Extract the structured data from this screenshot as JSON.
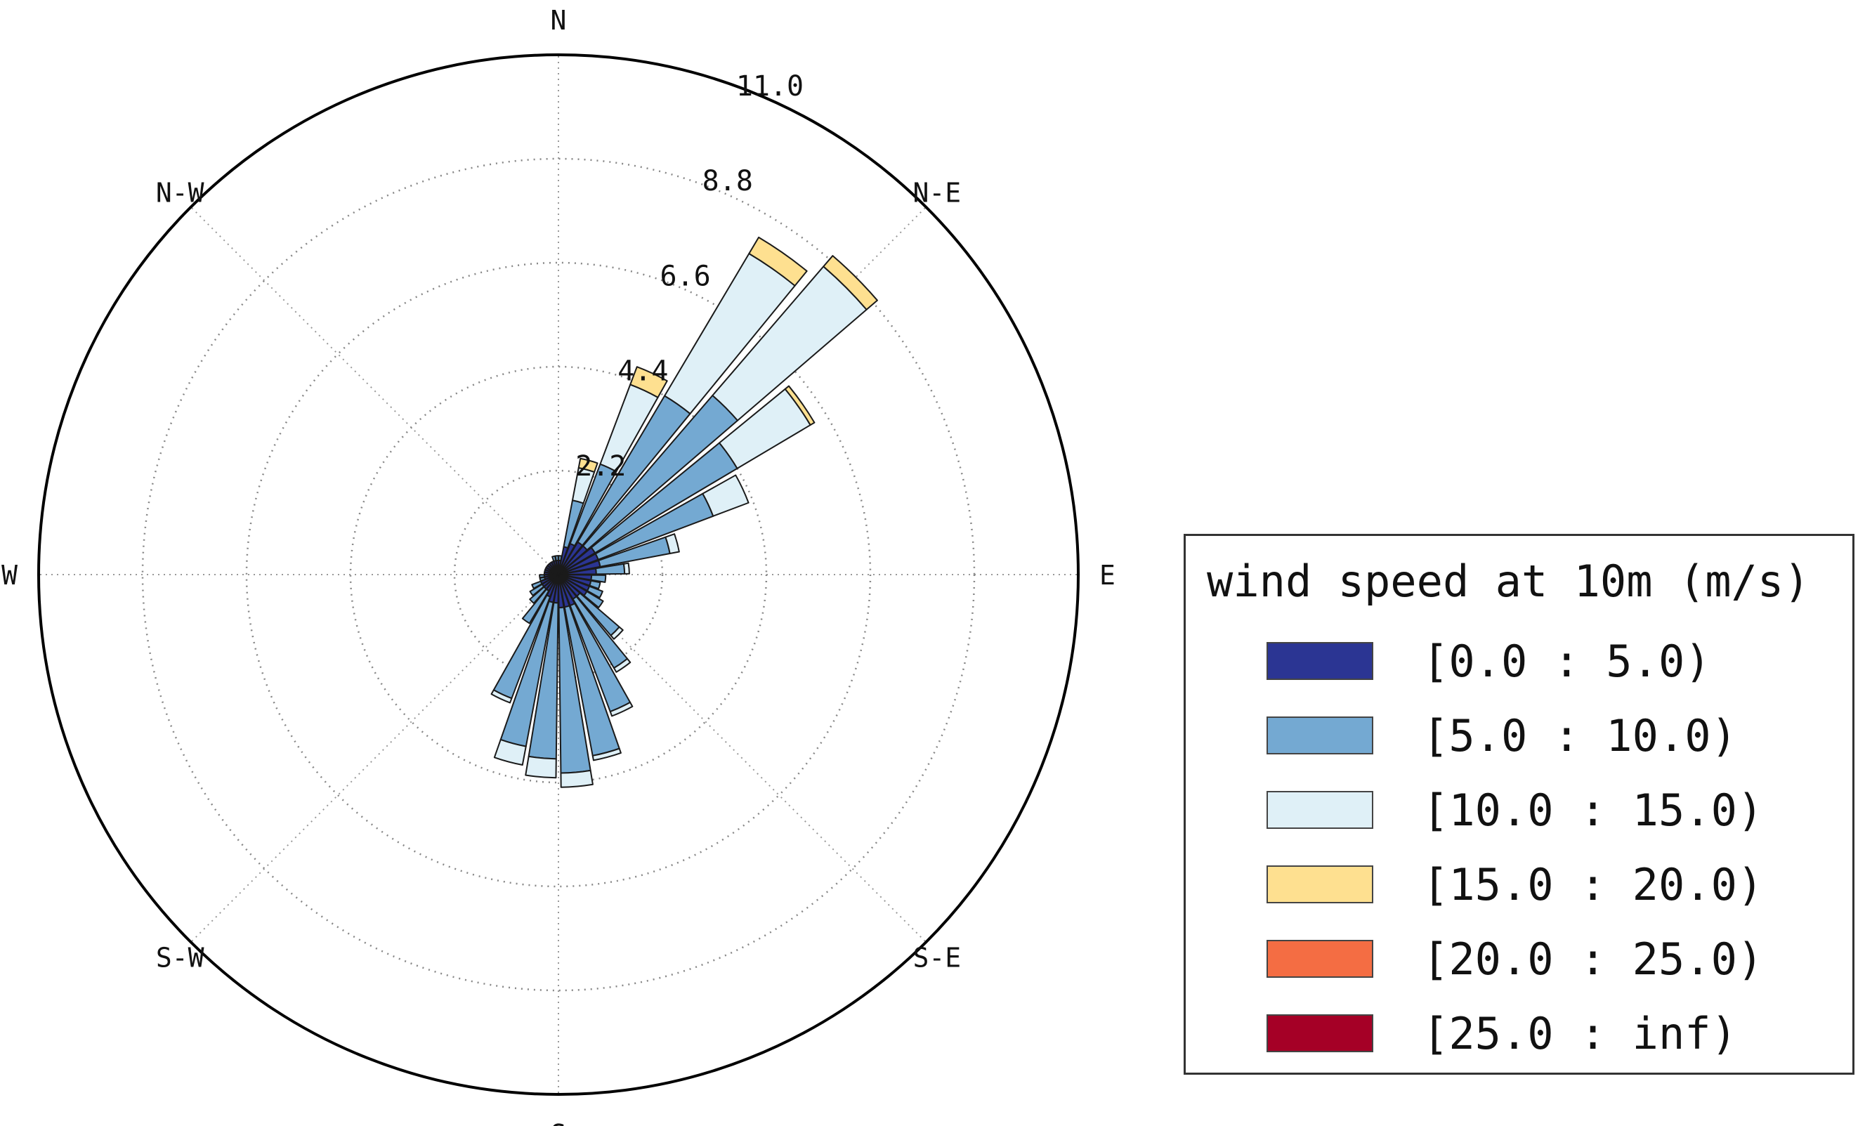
{
  "chart_data": {
    "type": "windrose",
    "direction_labels": [
      "N",
      "N-E",
      "E",
      "S-E",
      "S",
      "S-W",
      "W",
      "N-W"
    ],
    "radial_ticks": [
      "2.2",
      "4.4",
      "6.6",
      "8.8",
      "11.0"
    ],
    "radial_max": 11.0,
    "legend": {
      "title": "wind speed at 10m (m/s)",
      "bins": [
        {
          "label": "[0.0 : 5.0)",
          "color": "#2b3593"
        },
        {
          "label": "[5.0 : 10.0)",
          "color": "#74a9d2"
        },
        {
          "label": "[10.0 : 15.0)",
          "color": "#dff0f7"
        },
        {
          "label": "[15.0 : 20.0)",
          "color": "#fee090"
        },
        {
          "label": "[20.0 : 25.0)",
          "color": "#f46d43"
        },
        {
          "label": "[25.0 : inf)",
          "color": "#a50026"
        }
      ]
    },
    "sectors": [
      {
        "dir": 5,
        "values": [
          0.3,
          0.1,
          0.0,
          0.0,
          0.0,
          0.0
        ]
      },
      {
        "dir": 15,
        "values": [
          0.6,
          1.0,
          0.7,
          0.2,
          0.0,
          0.0
        ]
      },
      {
        "dir": 25,
        "values": [
          0.7,
          1.8,
          1.8,
          0.4,
          0.0,
          0.0
        ]
      },
      {
        "dir": 35,
        "values": [
          0.8,
          3.6,
          3.5,
          0.4,
          0.0,
          0.0
        ]
      },
      {
        "dir": 45,
        "values": [
          0.8,
          4.2,
          3.6,
          0.3,
          0.0,
          0.0
        ]
      },
      {
        "dir": 55,
        "values": [
          0.9,
          3.5,
          1.8,
          0.1,
          0.0,
          0.0
        ]
      },
      {
        "dir": 65,
        "values": [
          0.9,
          2.6,
          0.8,
          0.0,
          0.0,
          0.0
        ]
      },
      {
        "dir": 75,
        "values": [
          0.9,
          1.5,
          0.2,
          0.0,
          0.0,
          0.0
        ]
      },
      {
        "dir": 85,
        "values": [
          0.8,
          0.6,
          0.1,
          0.0,
          0.0,
          0.0
        ]
      },
      {
        "dir": 95,
        "values": [
          0.7,
          0.3,
          0.0,
          0.0,
          0.0,
          0.0
        ]
      },
      {
        "dir": 105,
        "values": [
          0.7,
          0.2,
          0.0,
          0.0,
          0.0,
          0.0
        ]
      },
      {
        "dir": 115,
        "values": [
          0.7,
          0.3,
          0.0,
          0.0,
          0.0,
          0.0
        ]
      },
      {
        "dir": 125,
        "values": [
          0.7,
          0.4,
          0.0,
          0.0,
          0.0,
          0.0
        ]
      },
      {
        "dir": 135,
        "values": [
          0.6,
          1.1,
          0.1,
          0.0,
          0.0,
          0.0
        ]
      },
      {
        "dir": 145,
        "values": [
          0.6,
          1.7,
          0.1,
          0.0,
          0.0,
          0.0
        ]
      },
      {
        "dir": 155,
        "values": [
          0.7,
          2.4,
          0.1,
          0.0,
          0.0,
          0.0
        ]
      },
      {
        "dir": 165,
        "values": [
          0.7,
          3.2,
          0.1,
          0.0,
          0.0,
          0.0
        ]
      },
      {
        "dir": 175,
        "values": [
          0.7,
          3.5,
          0.3,
          0.0,
          0.0,
          0.0
        ]
      },
      {
        "dir": 185,
        "values": [
          0.6,
          3.3,
          0.4,
          0.0,
          0.0,
          0.0
        ]
      },
      {
        "dir": 195,
        "values": [
          0.6,
          3.1,
          0.4,
          0.0,
          0.0,
          0.0
        ]
      },
      {
        "dir": 205,
        "values": [
          0.5,
          2.3,
          0.1,
          0.0,
          0.0,
          0.0
        ]
      },
      {
        "dir": 215,
        "values": [
          0.4,
          0.8,
          0.0,
          0.0,
          0.0,
          0.0
        ]
      },
      {
        "dir": 225,
        "values": [
          0.4,
          0.4,
          0.0,
          0.0,
          0.0,
          0.0
        ]
      },
      {
        "dir": 235,
        "values": [
          0.4,
          0.3,
          0.0,
          0.0,
          0.0,
          0.0
        ]
      },
      {
        "dir": 245,
        "values": [
          0.4,
          0.2,
          0.0,
          0.0,
          0.0,
          0.0
        ]
      },
      {
        "dir": 255,
        "values": [
          0.3,
          0.1,
          0.0,
          0.0,
          0.0,
          0.0
        ]
      },
      {
        "dir": 265,
        "values": [
          0.3,
          0.1,
          0.0,
          0.0,
          0.0,
          0.0
        ]
      },
      {
        "dir": 275,
        "values": [
          0.3,
          0.0,
          0.0,
          0.0,
          0.0,
          0.0
        ]
      },
      {
        "dir": 285,
        "values": [
          0.3,
          0.0,
          0.0,
          0.0,
          0.0,
          0.0
        ]
      },
      {
        "dir": 295,
        "values": [
          0.3,
          0.0,
          0.0,
          0.0,
          0.0,
          0.0
        ]
      },
      {
        "dir": 305,
        "values": [
          0.3,
          0.0,
          0.0,
          0.0,
          0.0,
          0.0
        ]
      },
      {
        "dir": 315,
        "values": [
          0.3,
          0.0,
          0.0,
          0.0,
          0.0,
          0.0
        ]
      },
      {
        "dir": 325,
        "values": [
          0.3,
          0.0,
          0.0,
          0.0,
          0.0,
          0.0
        ]
      },
      {
        "dir": 335,
        "values": [
          0.3,
          0.0,
          0.0,
          0.0,
          0.0,
          0.0
        ]
      },
      {
        "dir": 345,
        "values": [
          0.3,
          0.1,
          0.0,
          0.0,
          0.0,
          0.0
        ]
      },
      {
        "dir": 355,
        "values": [
          0.3,
          0.1,
          0.0,
          0.0,
          0.0,
          0.0
        ]
      }
    ]
  }
}
